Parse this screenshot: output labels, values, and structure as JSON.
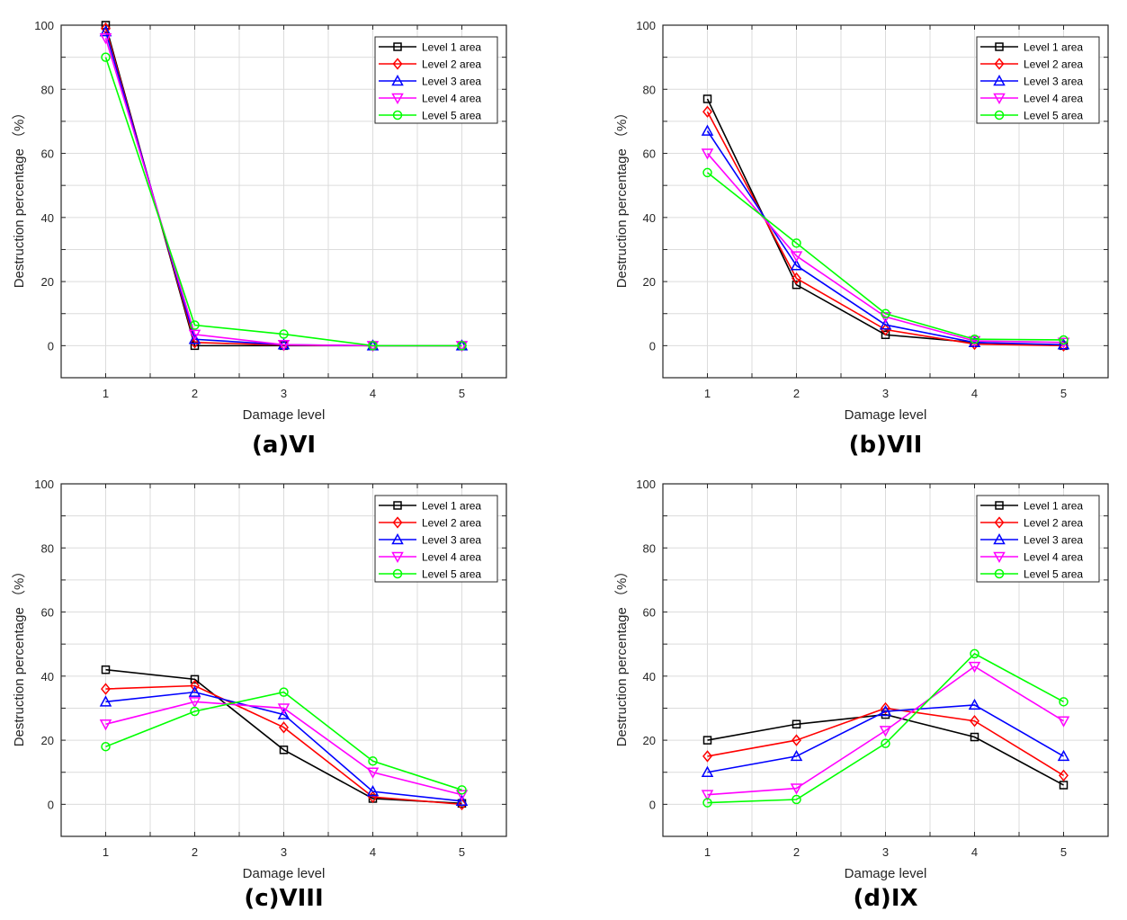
{
  "chart_data": [
    {
      "type": "line",
      "title": "(a)VI",
      "xlabel": "Damage level",
      "ylabel": "Destruction percentage （%）",
      "x": [
        1,
        2,
        3,
        4,
        5
      ],
      "x_ticks": [
        "1",
        "2",
        "3",
        "4",
        "5"
      ],
      "xlim": [
        0.5,
        5.5
      ],
      "ylim": [
        -10,
        100
      ],
      "y_ticks": [
        "0",
        "20",
        "40",
        "60",
        "80",
        "100"
      ],
      "grid": true,
      "legend_position": "top-right",
      "series": [
        {
          "name": "Level 1 area",
          "color": "#000000",
          "marker": "square",
          "values": [
            100,
            0,
            0,
            0,
            0
          ]
        },
        {
          "name": "Level 2 area",
          "color": "#ff0000",
          "marker": "diamond",
          "values": [
            99,
            1,
            0.2,
            0,
            0
          ]
        },
        {
          "name": "Level 3 area",
          "color": "#0000ff",
          "marker": "triangle-up",
          "values": [
            98,
            2,
            0.3,
            0,
            0
          ]
        },
        {
          "name": "Level 4 area",
          "color": "#ff00ff",
          "marker": "triangle-down",
          "values": [
            96,
            3.5,
            0.3,
            0,
            0
          ]
        },
        {
          "name": "Level 5 area",
          "color": "#00ff00",
          "marker": "circle",
          "values": [
            90,
            6.4,
            3.6,
            0,
            0
          ]
        }
      ]
    },
    {
      "type": "line",
      "title": "(b)VII",
      "xlabel": "Damage level",
      "ylabel": "Destruction percentage （%）",
      "x": [
        1,
        2,
        3,
        4,
        5
      ],
      "x_ticks": [
        "1",
        "2",
        "3",
        "4",
        "5"
      ],
      "xlim": [
        0.5,
        5.5
      ],
      "ylim": [
        -10,
        100
      ],
      "y_ticks": [
        "0",
        "20",
        "40",
        "60",
        "80",
        "100"
      ],
      "grid": true,
      "legend_position": "top-right",
      "series": [
        {
          "name": "Level 1 area",
          "color": "#000000",
          "marker": "square",
          "values": [
            77,
            19,
            3.4,
            1,
            0
          ]
        },
        {
          "name": "Level 2 area",
          "color": "#ff0000",
          "marker": "diamond",
          "values": [
            73,
            21,
            5,
            0.5,
            0
          ]
        },
        {
          "name": "Level 3 area",
          "color": "#0000ff",
          "marker": "triangle-up",
          "values": [
            67,
            25,
            6.5,
            1,
            0.3
          ]
        },
        {
          "name": "Level 4 area",
          "color": "#ff00ff",
          "marker": "triangle-down",
          "values": [
            60,
            28,
            9,
            1.5,
            1
          ]
        },
        {
          "name": "Level 5 area",
          "color": "#00ff00",
          "marker": "circle",
          "values": [
            54,
            32,
            10,
            2,
            1.8
          ]
        }
      ]
    },
    {
      "type": "line",
      "title": "(c)VIII",
      "xlabel": "Damage level",
      "ylabel": "Destruction percentage （%）",
      "x": [
        1,
        2,
        3,
        4,
        5
      ],
      "x_ticks": [
        "1",
        "2",
        "3",
        "4",
        "5"
      ],
      "xlim": [
        0.5,
        5.5
      ],
      "ylim": [
        -10,
        100
      ],
      "y_ticks": [
        "0",
        "20",
        "40",
        "60",
        "80",
        "100"
      ],
      "grid": true,
      "legend_position": "top-right",
      "series": [
        {
          "name": "Level 1 area",
          "color": "#000000",
          "marker": "square",
          "values": [
            42,
            39,
            17,
            1.8,
            0.3
          ]
        },
        {
          "name": "Level 2 area",
          "color": "#ff0000",
          "marker": "diamond",
          "values": [
            36,
            37,
            24,
            2.3,
            0
          ]
        },
        {
          "name": "Level 3 area",
          "color": "#0000ff",
          "marker": "triangle-up",
          "values": [
            32,
            35,
            28,
            4,
            1
          ]
        },
        {
          "name": "Level 4 area",
          "color": "#ff00ff",
          "marker": "triangle-down",
          "values": [
            25,
            32,
            30,
            10,
            3
          ]
        },
        {
          "name": "Level 5 area",
          "color": "#00ff00",
          "marker": "circle",
          "values": [
            18,
            29,
            35,
            13.5,
            4.5
          ]
        }
      ]
    },
    {
      "type": "line",
      "title": "(d)IX",
      "xlabel": "Damage level",
      "ylabel": "Destruction percentage （%）",
      "x": [
        1,
        2,
        3,
        4,
        5
      ],
      "x_ticks": [
        "1",
        "2",
        "3",
        "4",
        "5"
      ],
      "xlim": [
        0.5,
        5.5
      ],
      "ylim": [
        -10,
        100
      ],
      "y_ticks": [
        "0",
        "20",
        "40",
        "60",
        "80",
        "100"
      ],
      "grid": true,
      "legend_position": "top-right",
      "series": [
        {
          "name": "Level 1 area",
          "color": "#000000",
          "marker": "square",
          "values": [
            20,
            25,
            28,
            21,
            6
          ]
        },
        {
          "name": "Level 2 area",
          "color": "#ff0000",
          "marker": "diamond",
          "values": [
            15,
            20,
            30,
            26,
            9
          ]
        },
        {
          "name": "Level 3 area",
          "color": "#0000ff",
          "marker": "triangle-up",
          "values": [
            10,
            15,
            29,
            31,
            15
          ]
        },
        {
          "name": "Level 4 area",
          "color": "#ff00ff",
          "marker": "triangle-down",
          "values": [
            3,
            5,
            23,
            43,
            26
          ]
        },
        {
          "name": "Level 5 area",
          "color": "#00ff00",
          "marker": "circle",
          "values": [
            0.5,
            1.5,
            19,
            47,
            32
          ]
        }
      ]
    }
  ]
}
